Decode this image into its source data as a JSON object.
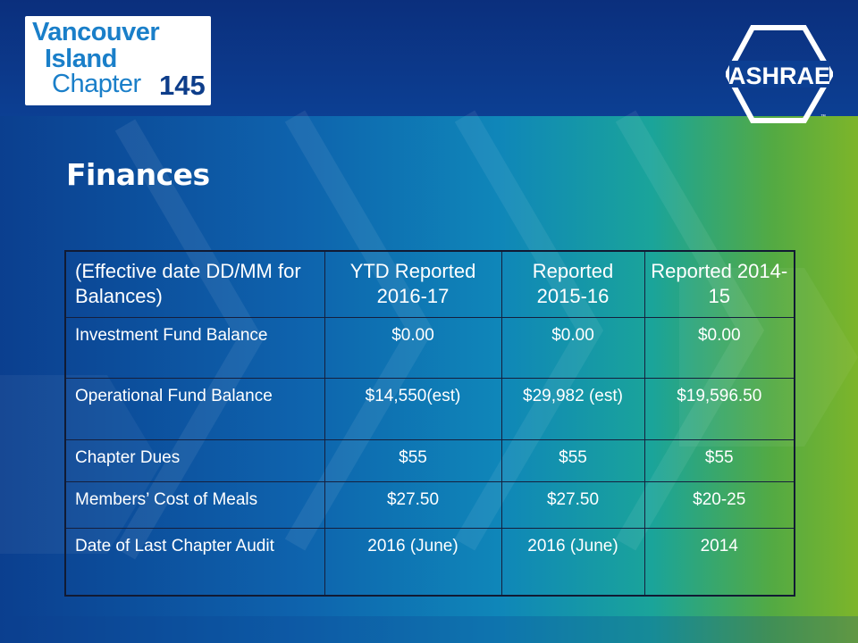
{
  "logo": {
    "line1": "Vancouver",
    "line2": "Island",
    "line3": "Chapter",
    "number": "145",
    "ashrae": "ASHRAE",
    "tm": "™"
  },
  "title": "Finances",
  "table": {
    "headers": [
      "(Effective date DD/MM for Balances)",
      "YTD Reported 2016-17",
      "Reported 2015-16",
      "Reported 2014-15"
    ],
    "rows": [
      [
        "Investment Fund Balance",
        "$0.00",
        "$0.00",
        "$0.00"
      ],
      [
        "Operational Fund Balance",
        "$14,550(est)",
        "$29,982 (est)",
        "$19,596.50"
      ],
      [
        "Chapter Dues",
        "$55",
        "$55",
        "$55"
      ],
      [
        "Members’ Cost of Meals",
        "$27.50",
        "$27.50",
        "$20-25"
      ],
      [
        "Date of Last Chapter Audit",
        "2016 (June)",
        "2016 (June)",
        "2014"
      ]
    ]
  }
}
